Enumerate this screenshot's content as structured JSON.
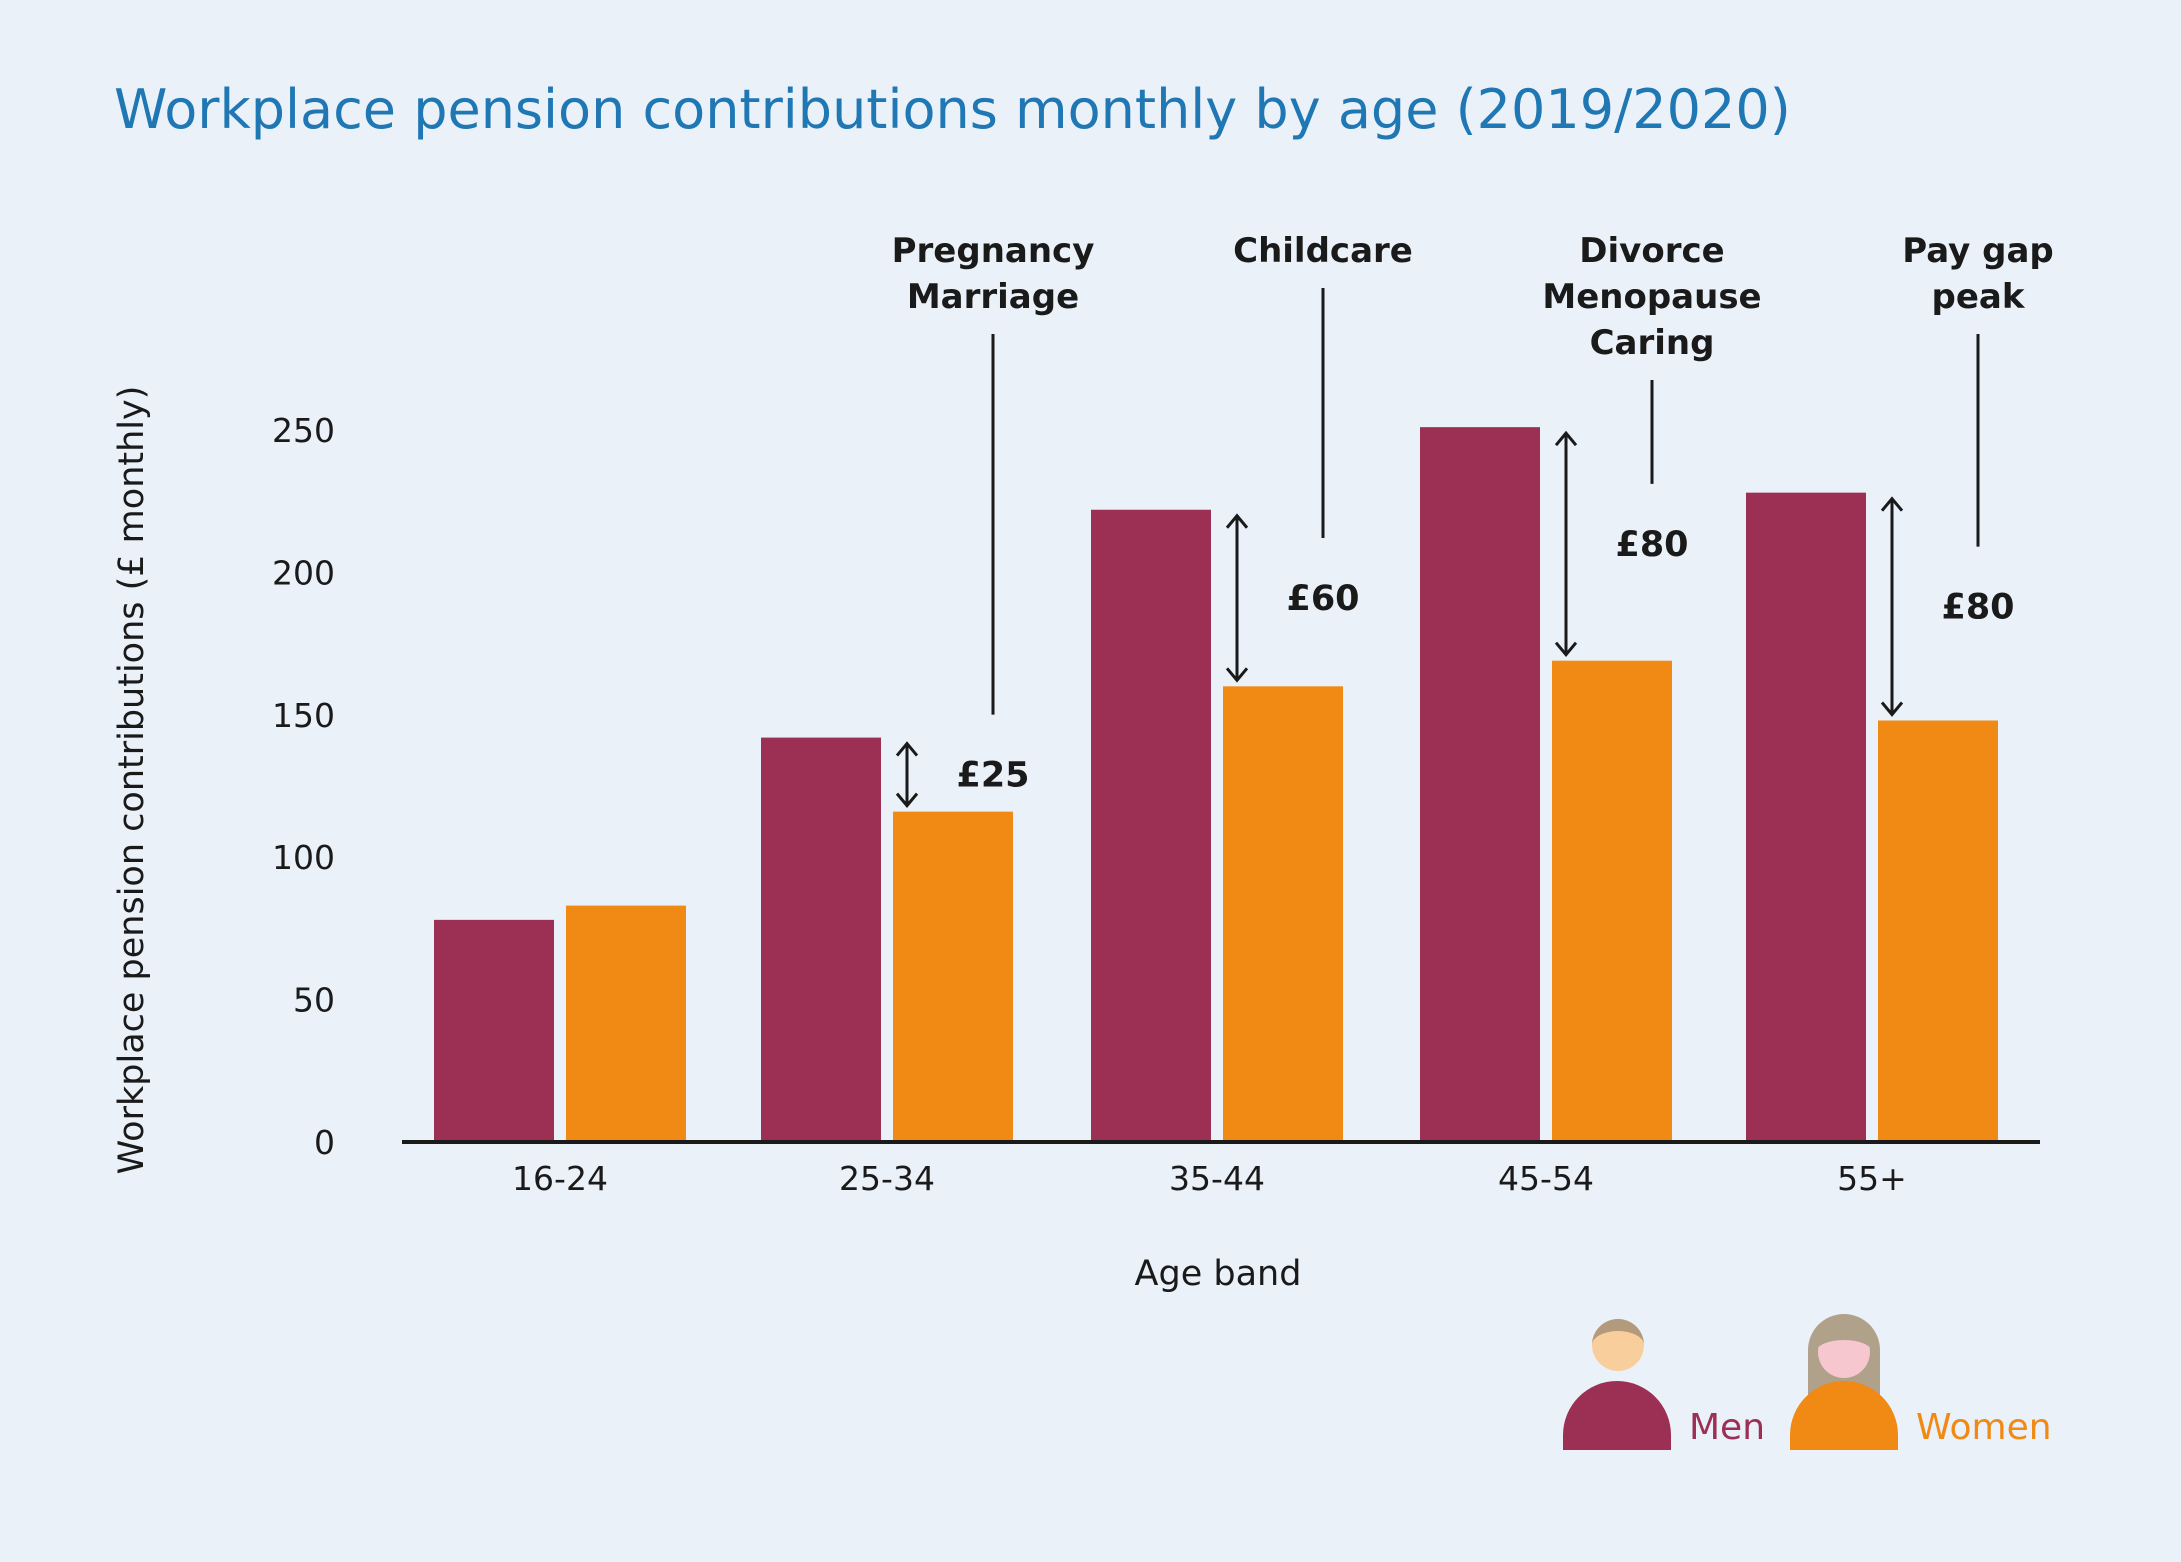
{
  "chart_data": {
    "type": "bar",
    "title": "Workplace pension contributions monthly by age (2019/2020)",
    "xlabel": "Age band",
    "ylabel": "Workplace pension contributions (£ monthly)",
    "categories": [
      "16-24",
      "25-34",
      "35-44",
      "45-54",
      "55+"
    ],
    "series": [
      {
        "name": "Men",
        "values": [
          78,
          142,
          222,
          251,
          228
        ],
        "color": "#9b3054"
      },
      {
        "name": "Women",
        "values": [
          83,
          116,
          160,
          169,
          148
        ],
        "color": "#f08a14"
      }
    ],
    "ylim": [
      0,
      250
    ],
    "yticks": [
      0,
      50,
      100,
      150,
      200,
      250
    ],
    "grid": false,
    "legend": "bottom-right",
    "annotations": [
      {
        "category": "25-34",
        "lines": [
          "Pregnancy",
          "Marriage"
        ],
        "gap_label": "£25"
      },
      {
        "category": "35-44",
        "lines": [
          "Childcare"
        ],
        "gap_label": "£60"
      },
      {
        "category": "45-54",
        "lines": [
          "Divorce",
          "Menopause",
          "Caring"
        ],
        "gap_label": "£80"
      },
      {
        "category": "55+",
        "lines": [
          "Pay gap",
          "peak"
        ],
        "gap_label": "£80"
      }
    ],
    "legend_icons": {
      "men": "man-avatar-icon",
      "women": "woman-avatar-icon"
    }
  }
}
